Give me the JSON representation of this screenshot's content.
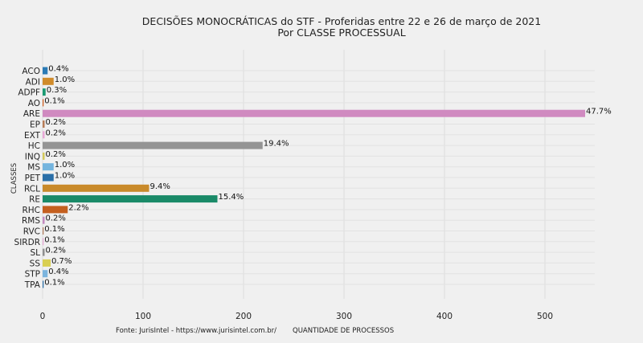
{
  "chart_data": {
    "type": "bar",
    "orientation": "horizontal",
    "title": "DECISÕES MONOCRÁTICAS do STF - Proferidas entre 22 e 26 de março de 2021",
    "subtitle": "Por CLASSE PROCESSUAL",
    "ylabel": "CLASSES",
    "xlabel": "QUANTIDADE DE PROCESSOS",
    "source": "Fonte: JurisIntel - https://www.jurisintel.com.br/",
    "xlim": [
      0,
      540
    ],
    "xticks": [
      0,
      100,
      200,
      300,
      400,
      500
    ],
    "grid": true,
    "categories": [
      "ACO",
      "ADI",
      "ADPF",
      "AO",
      "ARE",
      "EP",
      "EXT",
      "HC",
      "INQ",
      "MS",
      "PET",
      "RCL",
      "RE",
      "RHC",
      "RMS",
      "RVC",
      "SIRDR",
      "SL",
      "SS",
      "STP",
      "TPA"
    ],
    "values": [
      5,
      11,
      3,
      1,
      540,
      2,
      2,
      219,
      2,
      11,
      11,
      106,
      174,
      25,
      2,
      1,
      1,
      2,
      8,
      5,
      1
    ],
    "labels": [
      "0.4%",
      "1.0%",
      "0.3%",
      "0.1%",
      "47.7%",
      "0.2%",
      "0.2%",
      "19.4%",
      "0.2%",
      "1.0%",
      "1.0%",
      "9.4%",
      "15.4%",
      "2.2%",
      "0.2%",
      "0.1%",
      "0.1%",
      "0.2%",
      "0.7%",
      "0.4%",
      "0.1%"
    ],
    "colors": [
      "#2a7ab5",
      "#d08b2a",
      "#1a9a72",
      "#d05e1f",
      "#d08ac0",
      "#b87d58",
      "#e8a7d6",
      "#949494",
      "#d4c95a",
      "#74b4de",
      "#2a6fa8",
      "#c98a2a",
      "#1a8a68",
      "#c45f1f",
      "#c48abf",
      "#b07c5c",
      "#e6a7d3",
      "#8f8f8f",
      "#d9cf52",
      "#7cb5de",
      "#2a6fa8"
    ]
  }
}
